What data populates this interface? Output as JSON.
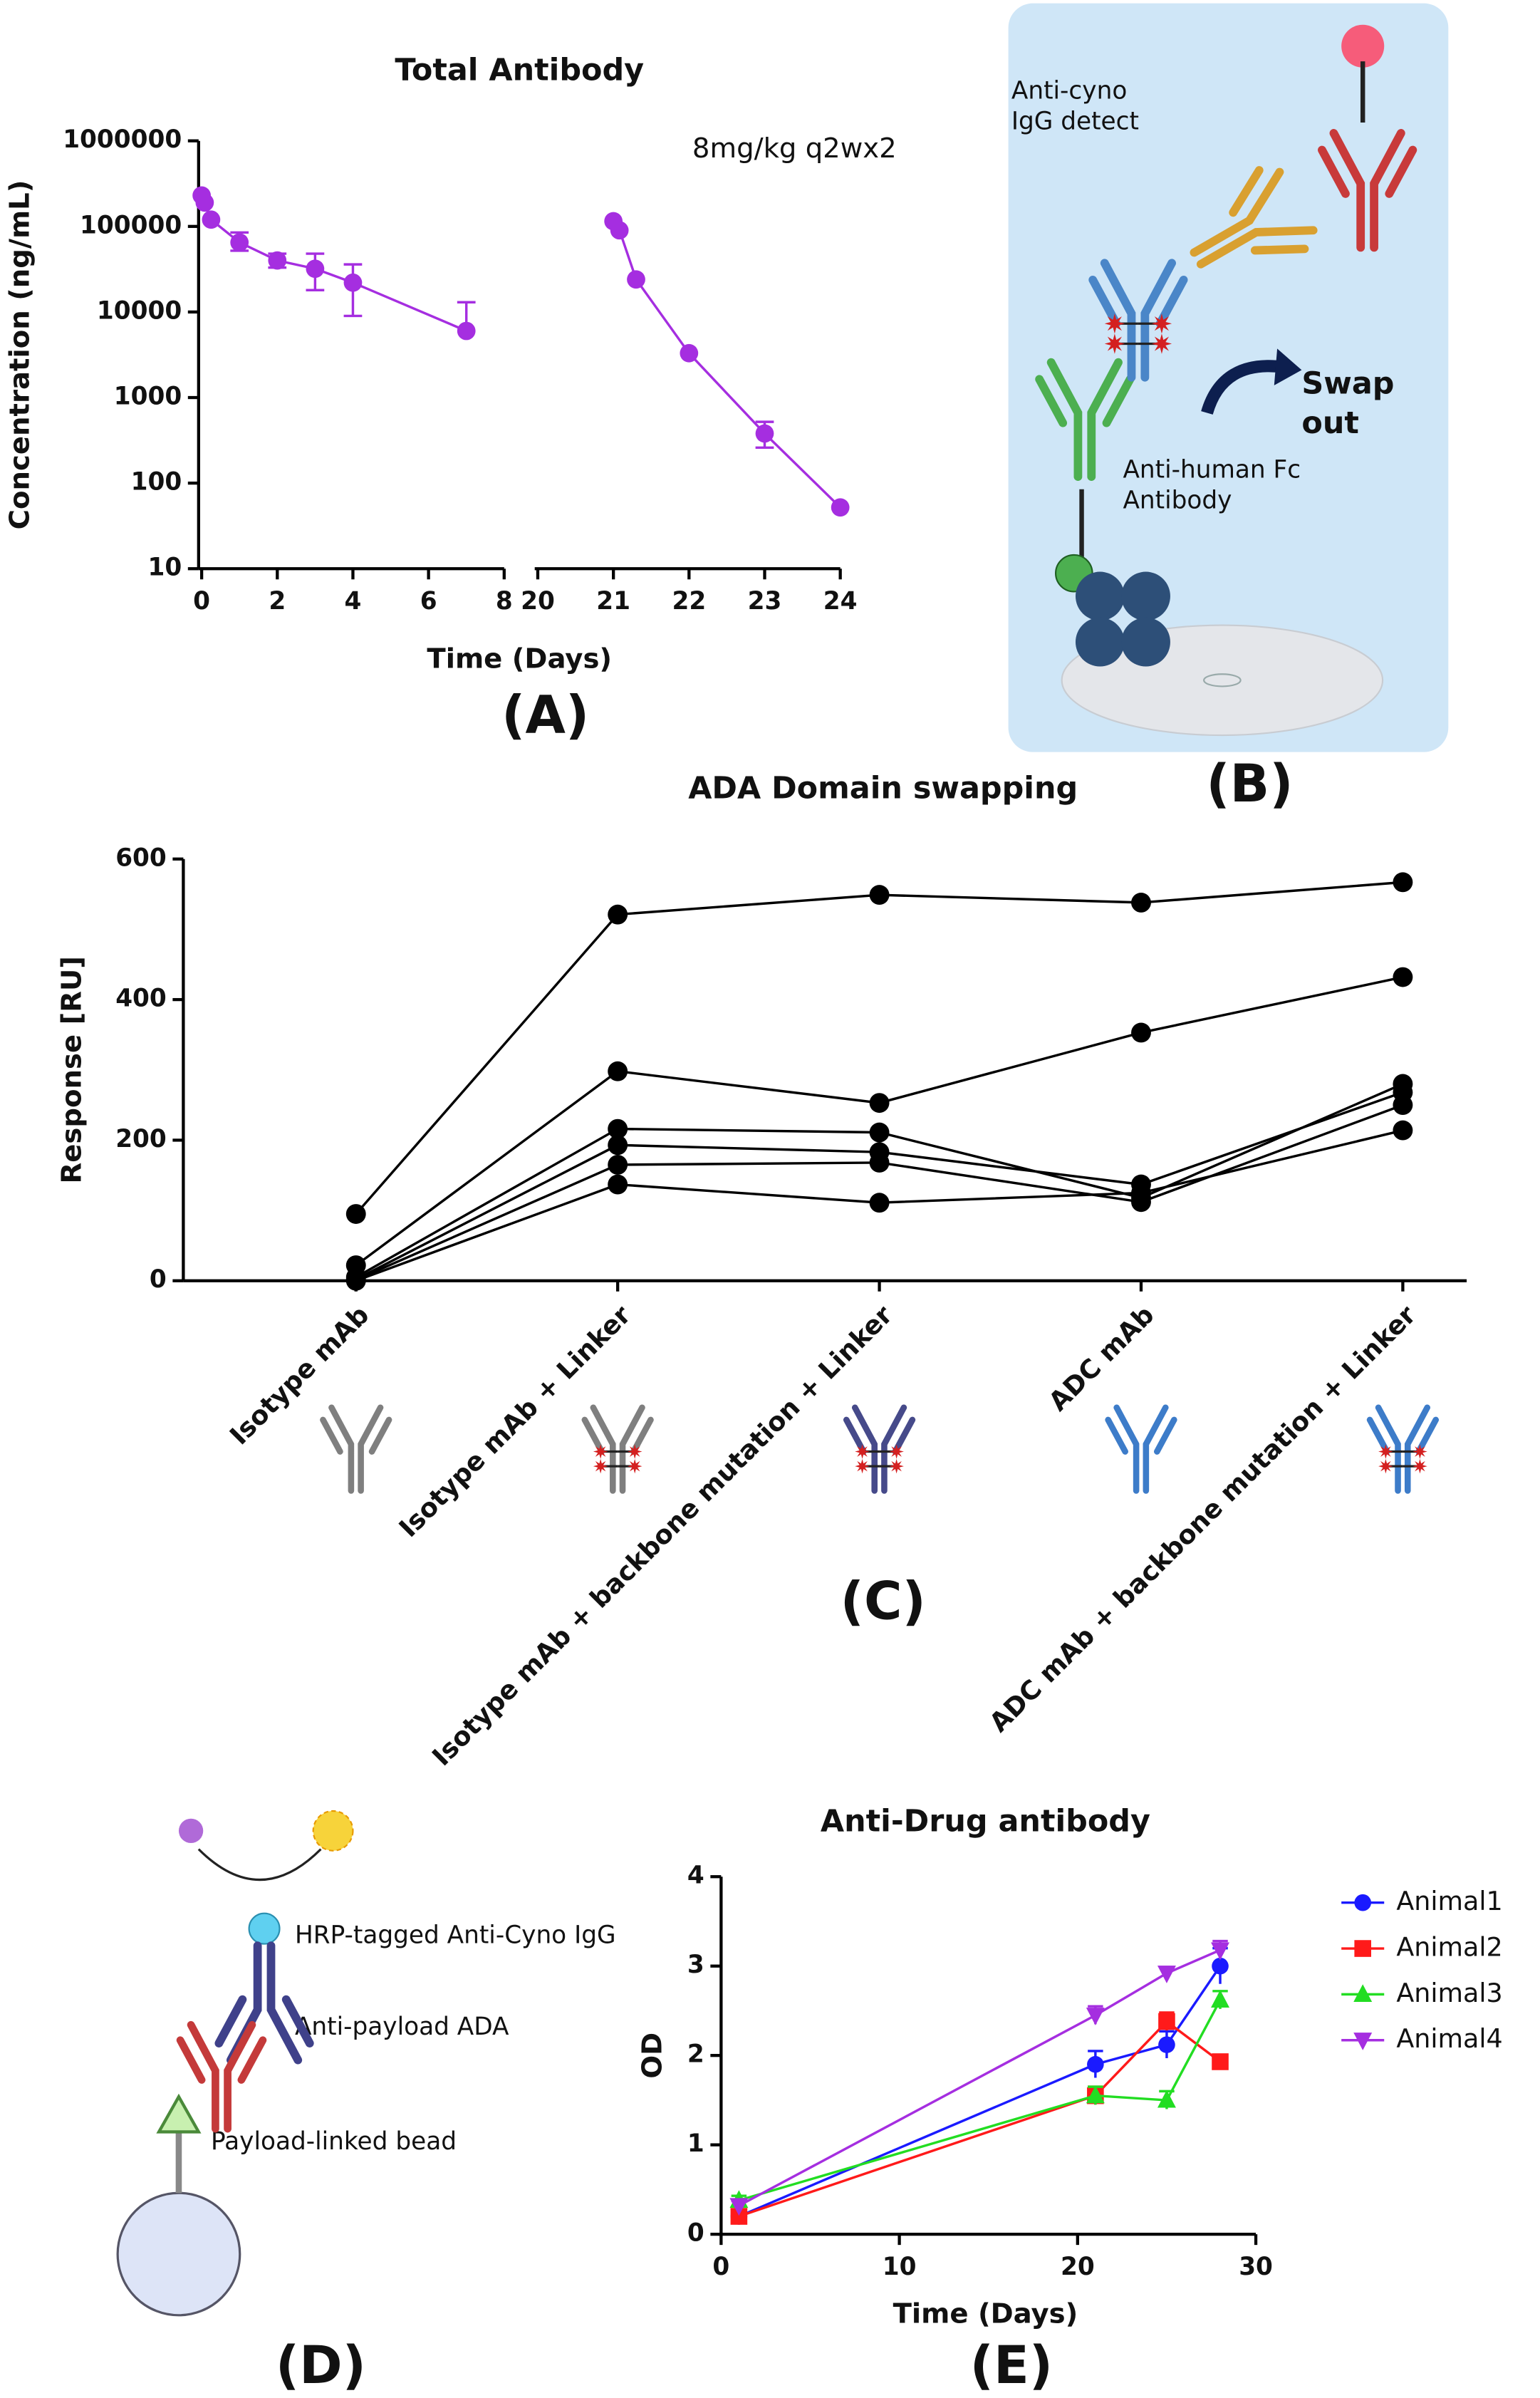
{
  "panels": [
    "(A)",
    "(B)",
    "(C)",
    "(D)",
    "(E)"
  ],
  "diagram_b": {
    "detect": [
      "Anti-cyno",
      "IgG detect"
    ],
    "swap": [
      "Swap",
      "out"
    ],
    "capture": [
      "Anti-human Fc",
      "Antibody"
    ]
  },
  "diagram_d": {
    "hrp": "HRP-tagged Anti-Cyno IgG",
    "ada": "Anti-payload ADA",
    "bead": "Payload-linked bead"
  },
  "chart_data": [
    {
      "type": "line",
      "title": "Total Antibody",
      "annotation": "8mg/kg q2wx2",
      "xlabel": "Time (Days)",
      "ylabel": "Concentration (ng/mL)",
      "ylog": true,
      "ylim": [
        10,
        1000000
      ],
      "yticks": [
        10,
        100,
        1000,
        10000,
        100000,
        1000000
      ],
      "x_segments": [
        {
          "xlim": [
            0,
            8
          ],
          "xticks": [
            0,
            2,
            4,
            6,
            8
          ]
        },
        {
          "xlim": [
            20,
            24
          ],
          "xticks": [
            20,
            21,
            22,
            23,
            24
          ]
        }
      ],
      "series": [
        {
          "color": "#a52ee0",
          "x": [
            0,
            0.08,
            0.25,
            1,
            2,
            3,
            4,
            7,
            null,
            21,
            21.08,
            21.3,
            22,
            23,
            24
          ],
          "values": [
            230000,
            190000,
            120000,
            65000,
            40000,
            32000,
            22000,
            6000,
            null,
            115000,
            90000,
            24000,
            3300,
            380,
            52
          ],
          "error_high": [
            null,
            null,
            null,
            85000,
            48000,
            48000,
            36000,
            13000,
            null,
            null,
            null,
            null,
            null,
            520,
            null
          ],
          "error_low": [
            null,
            null,
            null,
            52000,
            33000,
            18000,
            9000,
            null,
            null,
            null,
            null,
            null,
            null,
            260,
            null
          ]
        }
      ]
    },
    {
      "type": "line",
      "title": "ADA Domain swapping",
      "ylabel": "Response [RU]",
      "categories": [
        "Isotype mAb",
        "Isotype mAb + Linker",
        "Isotype mAb + backbone mutation + Linker",
        "ADC mAb",
        "ADC mAb + backbone mutation + Linker"
      ],
      "ylim": [
        0,
        600
      ],
      "yticks": [
        0,
        200,
        400,
        600
      ],
      "series": [
        {
          "color": "#000000",
          "values": [
            95,
            521,
            549,
            538,
            567
          ]
        },
        {
          "color": "#000000",
          "values": [
            22,
            298,
            253,
            353,
            432
          ]
        },
        {
          "color": "#000000",
          "values": [
            5,
            216,
            211,
            118,
            280
          ]
        },
        {
          "color": "#000000",
          "values": [
            2,
            193,
            183,
            137,
            268
          ]
        },
        {
          "color": "#000000",
          "values": [
            1,
            165,
            168,
            112,
            250
          ]
        },
        {
          "color": "#000000",
          "values": [
            0,
            137,
            111,
            125,
            214
          ]
        }
      ]
    },
    {
      "type": "line",
      "title": "Anti-Drug antibody",
      "xlabel": "Time (Days)",
      "ylabel": "OD",
      "xlim": [
        0,
        30
      ],
      "xticks": [
        0,
        10,
        20,
        30
      ],
      "ylim": [
        0,
        4
      ],
      "yticks": [
        0,
        1,
        2,
        3,
        4
      ],
      "legend": "right",
      "series": [
        {
          "name": "Animal1",
          "color": "#1a1aff",
          "marker": "circle",
          "x": [
            1,
            21,
            25,
            28
          ],
          "values": [
            0.2,
            1.9,
            2.12,
            3.0
          ],
          "errors": [
            0.05,
            0.15,
            0.15,
            0.2
          ]
        },
        {
          "name": "Animal2",
          "color": "#ff1a1a",
          "marker": "square",
          "x": [
            1,
            21,
            25,
            28
          ],
          "values": [
            0.2,
            1.55,
            2.38,
            1.93
          ],
          "errors": [
            0.05,
            0.1,
            0.1,
            0.05
          ]
        },
        {
          "name": "Animal3",
          "color": "#22dd22",
          "marker": "triangle",
          "x": [
            1,
            21,
            25,
            28
          ],
          "values": [
            0.38,
            1.55,
            1.5,
            2.62
          ],
          "errors": [
            0.05,
            0.1,
            0.1,
            0.1
          ]
        },
        {
          "name": "Animal4",
          "color": "#a52ee0",
          "marker": "triangle-down",
          "x": [
            1,
            21,
            25,
            28
          ],
          "values": [
            0.32,
            2.45,
            2.92,
            3.18
          ],
          "errors": [
            0.05,
            0.1,
            0.07,
            0.1
          ]
        }
      ]
    }
  ]
}
